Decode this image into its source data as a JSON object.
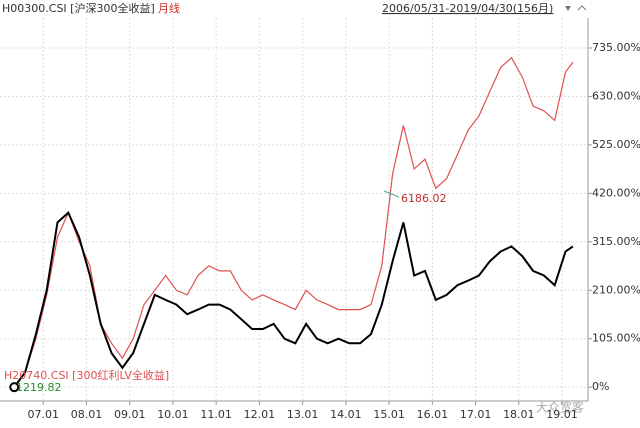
{
  "header": {
    "title": "H00300.CSI [沪深300全收益]",
    "period": "月线",
    "range": "2006/05/31-2019/04/30(156月)"
  },
  "chart_data": {
    "type": "line",
    "x": [
      2006.33,
      2006.58,
      2006.83,
      2007.08,
      2007.33,
      2007.58,
      2007.83,
      2008.08,
      2008.33,
      2008.58,
      2008.83,
      2009.08,
      2009.33,
      2009.58,
      2009.83,
      2010.08,
      2010.33,
      2010.58,
      2010.83,
      2011.08,
      2011.33,
      2011.58,
      2011.83,
      2012.08,
      2012.33,
      2012.58,
      2012.83,
      2013.08,
      2013.33,
      2013.58,
      2013.83,
      2014.08,
      2014.33,
      2014.58,
      2014.83,
      2015.08,
      2015.33,
      2015.58,
      2015.83,
      2016.08,
      2016.33,
      2016.58,
      2016.83,
      2017.08,
      2017.33,
      2017.58,
      2017.83,
      2018.08,
      2018.33,
      2018.58,
      2018.83,
      2019.08,
      2019.25
    ],
    "series": [
      {
        "name": "H00300.CSI [沪深300全收益]",
        "color": "#000000",
        "values": [
          0,
          32,
          115,
          210,
          357,
          378,
          325,
          242,
          137,
          74,
          42,
          74,
          137,
          200,
          189,
          179,
          158,
          168,
          179,
          179,
          168,
          147,
          126,
          126,
          137,
          105,
          95,
          137,
          105,
          95,
          105,
          95,
          95,
          115,
          179,
          273,
          357,
          242,
          252,
          189,
          200,
          221,
          231,
          242,
          273,
          294,
          305,
          284,
          252,
          242,
          221,
          294,
          305
        ]
      },
      {
        "name": "H20740.CSI [300红利LV全收益]",
        "color": "#e05050",
        "values": [
          0,
          32,
          105,
          200,
          325,
          378,
          315,
          263,
          137,
          95,
          63,
          105,
          179,
          210,
          242,
          210,
          200,
          242,
          263,
          252,
          252,
          210,
          189,
          200,
          189,
          179,
          168,
          210,
          189,
          179,
          168,
          168,
          168,
          179,
          263,
          462,
          567,
          473,
          494,
          431,
          452,
          504,
          557,
          588,
          641,
          693,
          714,
          672,
          609,
          599,
          578,
          683,
          704
        ]
      }
    ],
    "annotations": [
      {
        "text": "6186.02",
        "color": "#c03030"
      },
      {
        "text": "1219.82",
        "color": "#2a8a2a"
      }
    ],
    "xlim": [
      2006.0,
      2019.6
    ],
    "xticks": [
      {
        "value": 2007,
        "label": "07.01"
      },
      {
        "value": 2008,
        "label": "08.01"
      },
      {
        "value": 2009,
        "label": "09.01"
      },
      {
        "value": 2010,
        "label": "10.01"
      },
      {
        "value": 2011,
        "label": "11.01"
      },
      {
        "value": 2012,
        "label": "12.01"
      },
      {
        "value": 2013,
        "label": "13.01"
      },
      {
        "value": 2014,
        "label": "14.01"
      },
      {
        "value": 2015,
        "label": "15.01"
      },
      {
        "value": 2016,
        "label": "16.01"
      },
      {
        "value": 2017,
        "label": "17.01"
      },
      {
        "value": 2018,
        "label": "18.01"
      },
      {
        "value": 2019,
        "label": "19.01"
      }
    ],
    "ylim": [
      -30,
      800
    ],
    "yticks": [
      {
        "value": 0,
        "label": "0%"
      },
      {
        "value": 105,
        "label": "105.00%"
      },
      {
        "value": 210,
        "label": "210.00%"
      },
      {
        "value": 315,
        "label": "315.00%"
      },
      {
        "value": 420,
        "label": "420.00%"
      },
      {
        "value": 525,
        "label": "525.00%"
      },
      {
        "value": 630,
        "label": "630.00%"
      },
      {
        "value": 735,
        "label": "735.00%"
      }
    ],
    "grid": true
  },
  "watermark": "大众宽客"
}
